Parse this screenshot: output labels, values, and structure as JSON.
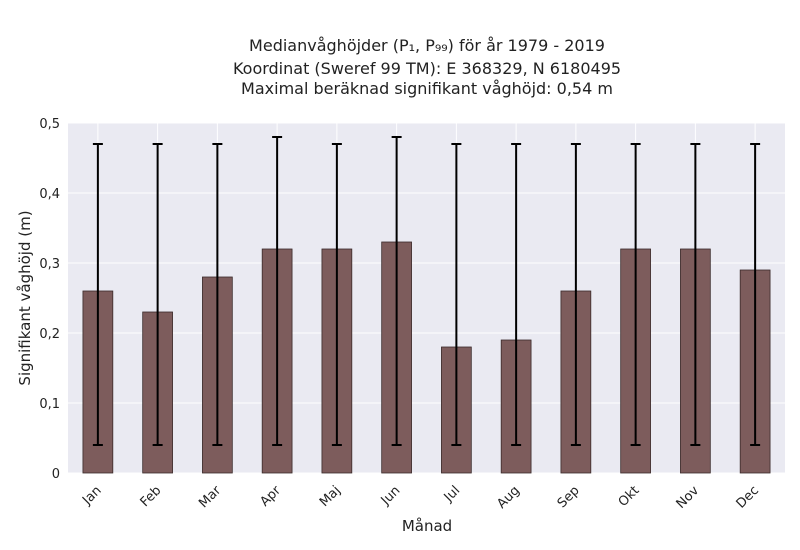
{
  "chart_data": {
    "type": "bar",
    "title_lines": [
      "Medianvåghöjder (P₁, P₉₉) för år 1979 - 2019",
      "Koordinat (Sweref 99 TM): E 368329, N 6180495",
      "Maximal beräknad signifikant våghöjd: 0,54 m"
    ],
    "xlabel": "Månad",
    "ylabel": "Signifikant våghöjd (m)",
    "categories": [
      "Jan",
      "Feb",
      "Mar",
      "Apr",
      "Maj",
      "Jun",
      "Jul",
      "Aug",
      "Sep",
      "Okt",
      "Nov",
      "Dec"
    ],
    "values": [
      0.26,
      0.23,
      0.28,
      0.32,
      0.32,
      0.33,
      0.18,
      0.19,
      0.26,
      0.32,
      0.32,
      0.29
    ],
    "error_low": [
      0.04,
      0.04,
      0.04,
      0.04,
      0.04,
      0.04,
      0.04,
      0.04,
      0.04,
      0.04,
      0.04,
      0.04
    ],
    "error_high": [
      0.47,
      0.47,
      0.47,
      0.48,
      0.47,
      0.48,
      0.47,
      0.47,
      0.47,
      0.47,
      0.47,
      0.47
    ],
    "ylim": [
      0,
      0.5
    ],
    "yticks": [
      0,
      0.1,
      0.2,
      0.3,
      0.4,
      0.5
    ],
    "ytick_labels": [
      "0",
      "0,1",
      "0,2",
      "0,3",
      "0,4",
      "0,5"
    ],
    "grid": true,
    "colors": {
      "bar": "#7d5c5c",
      "plot_background": "#eaeaf2",
      "grid": "#ffffff",
      "error": "#000000"
    }
  }
}
